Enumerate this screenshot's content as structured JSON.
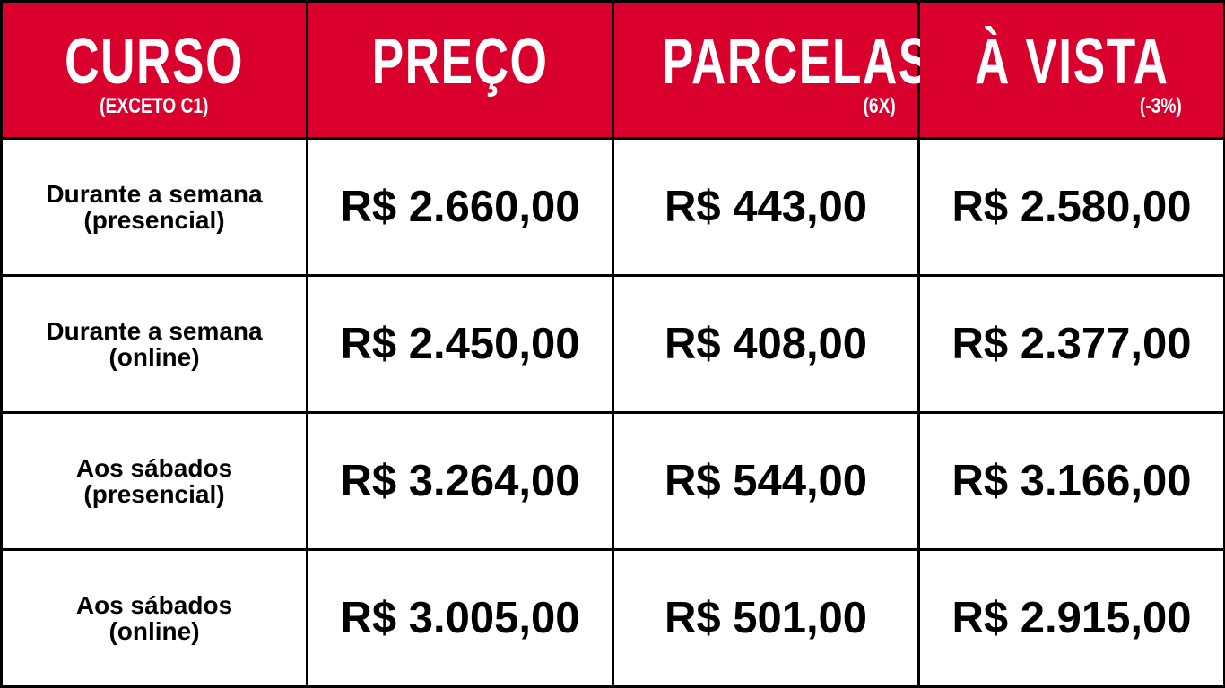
{
  "colors": {
    "header_bg": "#d9002e",
    "header_text": "#ffffff",
    "border": "#000000",
    "cell_bg": "#ffffff"
  },
  "headers": [
    {
      "title": "CURSO",
      "sub": "(EXCETO C1)"
    },
    {
      "title": "PREÇO",
      "sub": ""
    },
    {
      "title": "PARCELAS",
      "sub": "(6X)"
    },
    {
      "title": "À VISTA",
      "sub": "(-3%)"
    }
  ],
  "rows": [
    {
      "course_line1": "Durante a semana",
      "course_line2": "(presencial)",
      "price": "R$ 2.660,00",
      "installment": "R$ 443,00",
      "cash": "R$ 2.580,00"
    },
    {
      "course_line1": "Durante a semana",
      "course_line2": "(online)",
      "price": "R$ 2.450,00",
      "installment": "R$ 408,00",
      "cash": "R$ 2.377,00"
    },
    {
      "course_line1": "Aos sábados",
      "course_line2": "(presencial)",
      "price": "R$ 3.264,00",
      "installment": "R$ 544,00",
      "cash": "R$ 3.166,00"
    },
    {
      "course_line1": "Aos sábados",
      "course_line2": "(online)",
      "price": "R$ 3.005,00",
      "installment": "R$ 501,00",
      "cash": "R$ 2.915,00"
    }
  ]
}
